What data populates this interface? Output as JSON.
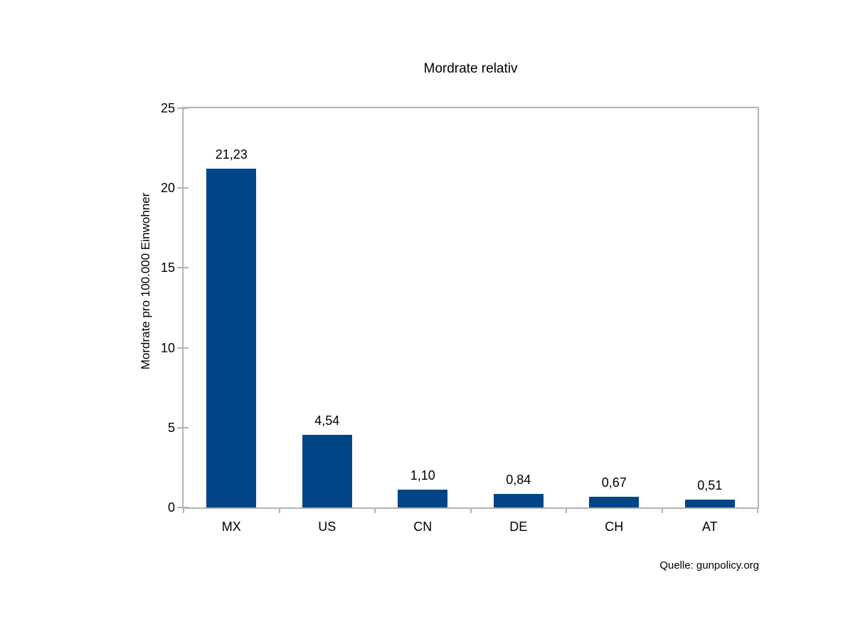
{
  "chart_data": {
    "type": "bar",
    "title": "Mordrate relativ",
    "categories": [
      "MX",
      "US",
      "CN",
      "DE",
      "CH",
      "AT"
    ],
    "values": [
      21.23,
      4.54,
      1.1,
      0.84,
      0.67,
      0.51
    ],
    "value_labels": [
      "21,23",
      "4,54",
      "1,10",
      "0,84",
      "0,67",
      "0,51"
    ],
    "xlabel": "",
    "ylabel": "Mordrate pro 100.000 Einwohner",
    "ylim": [
      0,
      25
    ],
    "yticks": [
      0,
      5,
      10,
      15,
      20,
      25
    ],
    "grid": false,
    "legend": false,
    "bar_color": "#004586",
    "axis_color": "#b3b3b3",
    "text_color": "#000000",
    "source": "Quelle: gunpolicy.org"
  }
}
